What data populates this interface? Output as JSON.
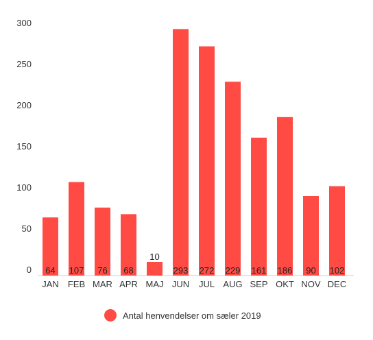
{
  "chart_data": {
    "type": "bar",
    "categories": [
      "JAN",
      "FEB",
      "MAR",
      "APR",
      "MAJ",
      "JUN",
      "JUL",
      "AUG",
      "SEP",
      "OKT",
      "NOV",
      "DEC"
    ],
    "series": [
      {
        "name": "Antal henvendelser om sæler 2019",
        "values": [
          64,
          107,
          76,
          68,
          10,
          293,
          272,
          229,
          161,
          186,
          90,
          102
        ],
        "color": "#ff4b44"
      }
    ],
    "yticks": [
      "0",
      "50",
      "100",
      "150",
      "200",
      "250",
      "300"
    ],
    "ylim": [
      0,
      300
    ],
    "grid": false,
    "legend_position": "bottom"
  }
}
